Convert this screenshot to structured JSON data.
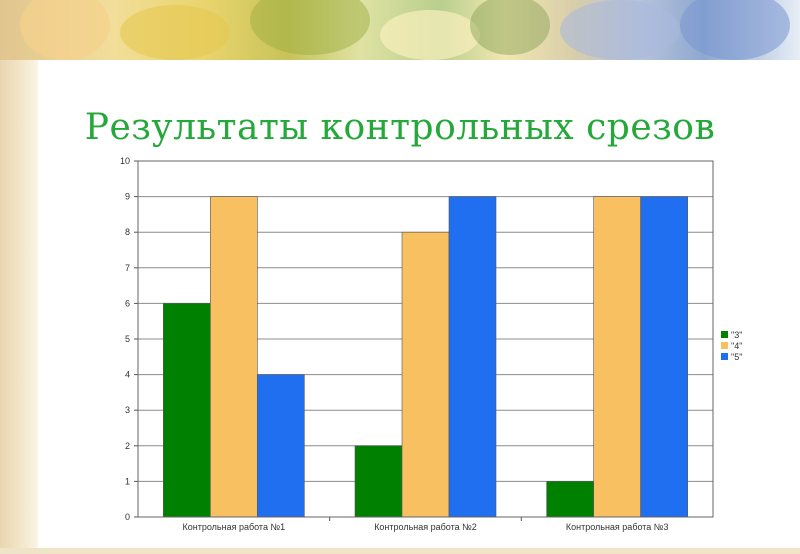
{
  "slide": {
    "title": "Результаты контрольных срезов"
  },
  "chart_data": {
    "type": "bar",
    "categories": [
      "Контрольная работа №1",
      "Контрольная работа №2",
      "Контрольная работа №3"
    ],
    "series": [
      {
        "name": "\"3\"",
        "values": [
          6,
          2,
          1
        ],
        "color": "#008000"
      },
      {
        "name": "\"4\"",
        "values": [
          9,
          8,
          9
        ],
        "color": "#f8c060"
      },
      {
        "name": "\"5\"",
        "values": [
          4,
          9,
          9
        ],
        "color": "#1f6ff0"
      }
    ],
    "ylim": [
      0,
      10
    ],
    "yticks": [
      0,
      1,
      2,
      3,
      4,
      5,
      6,
      7,
      8,
      9,
      10
    ],
    "grid": true,
    "legend": "right"
  }
}
